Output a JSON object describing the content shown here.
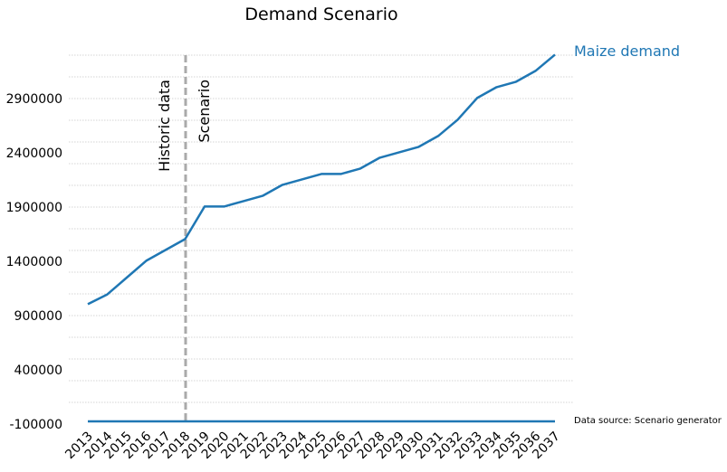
{
  "chart_data": {
    "type": "line",
    "title": "Demand Scenario",
    "xlabel": "",
    "ylabel": "",
    "categories": [
      "2013",
      "2014",
      "2015",
      "2016",
      "2017",
      "2018",
      "2019",
      "2020",
      "2021",
      "2022",
      "2023",
      "2024",
      "2025",
      "2026",
      "2027",
      "2028",
      "2029",
      "2030",
      "2031",
      "2032",
      "2033",
      "2034",
      "2035",
      "2036",
      "2037"
    ],
    "series": [
      {
        "name": "Maize demand",
        "color": "#1f77b4",
        "values": [
          1005000,
          1095000,
          1250000,
          1405000,
          1505000,
          1605000,
          1905000,
          1905000,
          1955000,
          2005000,
          2105000,
          2155000,
          2205000,
          2205000,
          2255000,
          2355000,
          2405000,
          2455000,
          2555000,
          2705000,
          2905000,
          3005000,
          3055000,
          3155000,
          3305000
        ]
      },
      {
        "name": "",
        "color": "#1f77b4",
        "values": [
          -75000,
          -75000,
          -75000,
          -75000,
          -75000,
          -75000,
          -75000,
          -75000,
          -75000,
          -75000,
          -75000,
          -75000,
          -75000,
          -75000,
          -75000,
          -75000,
          -75000,
          -75000,
          -75000,
          -75000,
          -75000,
          -75000,
          -75000,
          -75000,
          -75000
        ]
      }
    ],
    "ylim": [
      -100000,
      3300000
    ],
    "yticks": [
      -100000,
      400000,
      900000,
      1400000,
      1900000,
      2400000,
      2900000
    ],
    "ytick_labels": [
      "-100000",
      "400000",
      "900000",
      "1400000",
      "1900000",
      "2400000",
      "2900000"
    ],
    "minor_grid_step": 200000,
    "grid": true,
    "divider": {
      "at": "2018",
      "left_label": "Historic data",
      "right_label": "Scenario",
      "color": "#aaaaaa"
    },
    "series_label": "Maize demand",
    "source_note": "Data source: Scenario generator"
  }
}
